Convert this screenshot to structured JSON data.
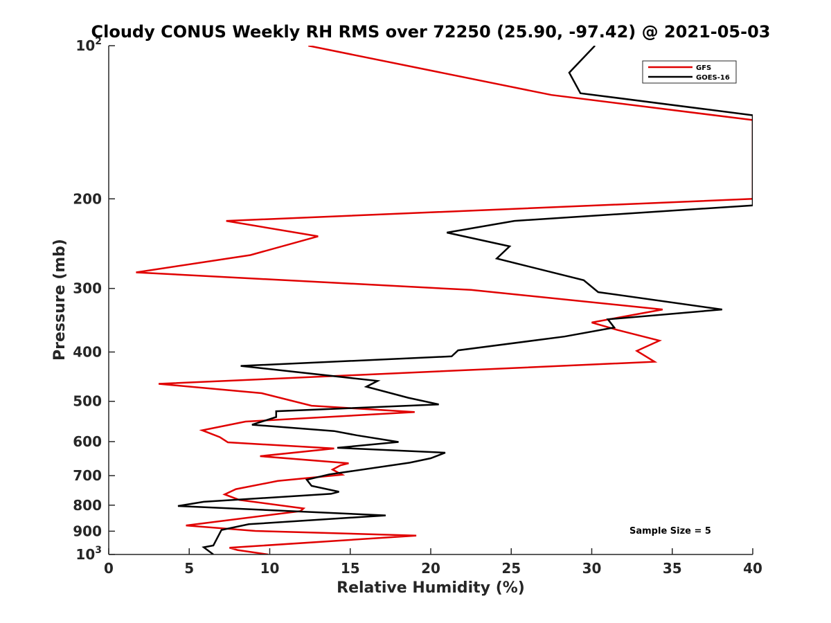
{
  "chart_data": {
    "type": "line",
    "title": "Cloudy CONUS Weekly RH RMS over 72250 (25.90, -97.42) @ 2021-05-03",
    "xlabel": "Relative Humidity (%)",
    "ylabel": "Pressure (mb)",
    "xlim": [
      0,
      40
    ],
    "ylim": [
      100,
      1000
    ],
    "y_scale": "log",
    "y_reversed": true,
    "grid": false,
    "legend_position": "top-right",
    "x_ticks": [
      "0",
      "5",
      "10",
      "15",
      "20",
      "25",
      "30",
      "35",
      "40"
    ],
    "y_ticks": [
      {
        "value": 100,
        "base": "10",
        "exp": "2"
      },
      {
        "value": 200,
        "label": "200"
      },
      {
        "value": 300,
        "label": "300"
      },
      {
        "value": 400,
        "label": "400"
      },
      {
        "value": 500,
        "label": "500"
      },
      {
        "value": 600,
        "label": "600"
      },
      {
        "value": 700,
        "label": "700"
      },
      {
        "value": 800,
        "label": "800"
      },
      {
        "value": 900,
        "label": "900"
      },
      {
        "value": 1000,
        "base": "10",
        "exp": "3"
      }
    ],
    "annotation": "Sample Size = 5",
    "series": [
      {
        "name": "GFS",
        "color": "#e00000",
        "points": [
          [
            12.4,
            100
          ],
          [
            27.5,
            125
          ],
          [
            40,
            140
          ],
          [
            40,
            200
          ],
          [
            7.3,
            221
          ],
          [
            13.0,
            237
          ],
          [
            8.8,
            258
          ],
          [
            1.7,
            279
          ],
          [
            22.5,
            302
          ],
          [
            34.4,
            330
          ],
          [
            30.0,
            350
          ],
          [
            31.6,
            362
          ],
          [
            34.2,
            380
          ],
          [
            32.8,
            398
          ],
          [
            33.9,
            418
          ],
          [
            3.1,
            462
          ],
          [
            9.5,
            482
          ],
          [
            12.6,
            510
          ],
          [
            19.0,
            525
          ],
          [
            8.5,
            548
          ],
          [
            5.8,
            570
          ],
          [
            6.9,
            588
          ],
          [
            7.4,
            602
          ],
          [
            14.0,
            619
          ],
          [
            9.4,
            641
          ],
          [
            14.9,
            662
          ],
          [
            14.4,
            668
          ],
          [
            13.9,
            681
          ],
          [
            14.5,
            697
          ],
          [
            10.5,
            717
          ],
          [
            7.9,
            744
          ],
          [
            7.2,
            762
          ],
          [
            8.1,
            781
          ],
          [
            12.1,
            812
          ],
          [
            11.9,
            822
          ],
          [
            4.8,
            877
          ],
          [
            9.1,
            899
          ],
          [
            19.1,
            918
          ],
          [
            7.5,
            970
          ],
          [
            8.0,
            980
          ],
          [
            9.9,
            1000
          ]
        ]
      },
      {
        "name": "GOES-16",
        "color": "#000000",
        "points": [
          [
            30.2,
            100
          ],
          [
            28.6,
            113
          ],
          [
            29.3,
            124
          ],
          [
            40,
            137
          ],
          [
            40,
            206
          ],
          [
            25.2,
            221
          ],
          [
            21.0,
            233
          ],
          [
            24.9,
            248
          ],
          [
            24.1,
            262
          ],
          [
            29.5,
            289
          ],
          [
            30.4,
            305
          ],
          [
            38.1,
            330
          ],
          [
            31.0,
            345
          ],
          [
            31.4,
            358
          ],
          [
            28.3,
            373
          ],
          [
            21.7,
            397
          ],
          [
            21.3,
            408
          ],
          [
            8.2,
            426
          ],
          [
            16.7,
            456
          ],
          [
            16.0,
            468
          ],
          [
            18.6,
            492
          ],
          [
            20.5,
            507
          ],
          [
            10.4,
            523
          ],
          [
            10.4,
            537
          ],
          [
            8.9,
            556
          ],
          [
            14.0,
            572
          ],
          [
            15.4,
            583
          ],
          [
            18.0,
            601
          ],
          [
            14.2,
            617
          ],
          [
            20.9,
            631
          ],
          [
            20.0,
            647
          ],
          [
            18.7,
            660
          ],
          [
            13.7,
            696
          ],
          [
            12.3,
            713
          ],
          [
            12.6,
            733
          ],
          [
            14.3,
            753
          ],
          [
            13.8,
            760
          ],
          [
            5.9,
            788
          ],
          [
            4.3,
            803
          ],
          [
            17.2,
            838
          ],
          [
            8.7,
            872
          ],
          [
            7.0,
            895
          ],
          [
            6.5,
            960
          ],
          [
            5.9,
            968
          ],
          [
            6.5,
            1000
          ]
        ]
      }
    ]
  }
}
